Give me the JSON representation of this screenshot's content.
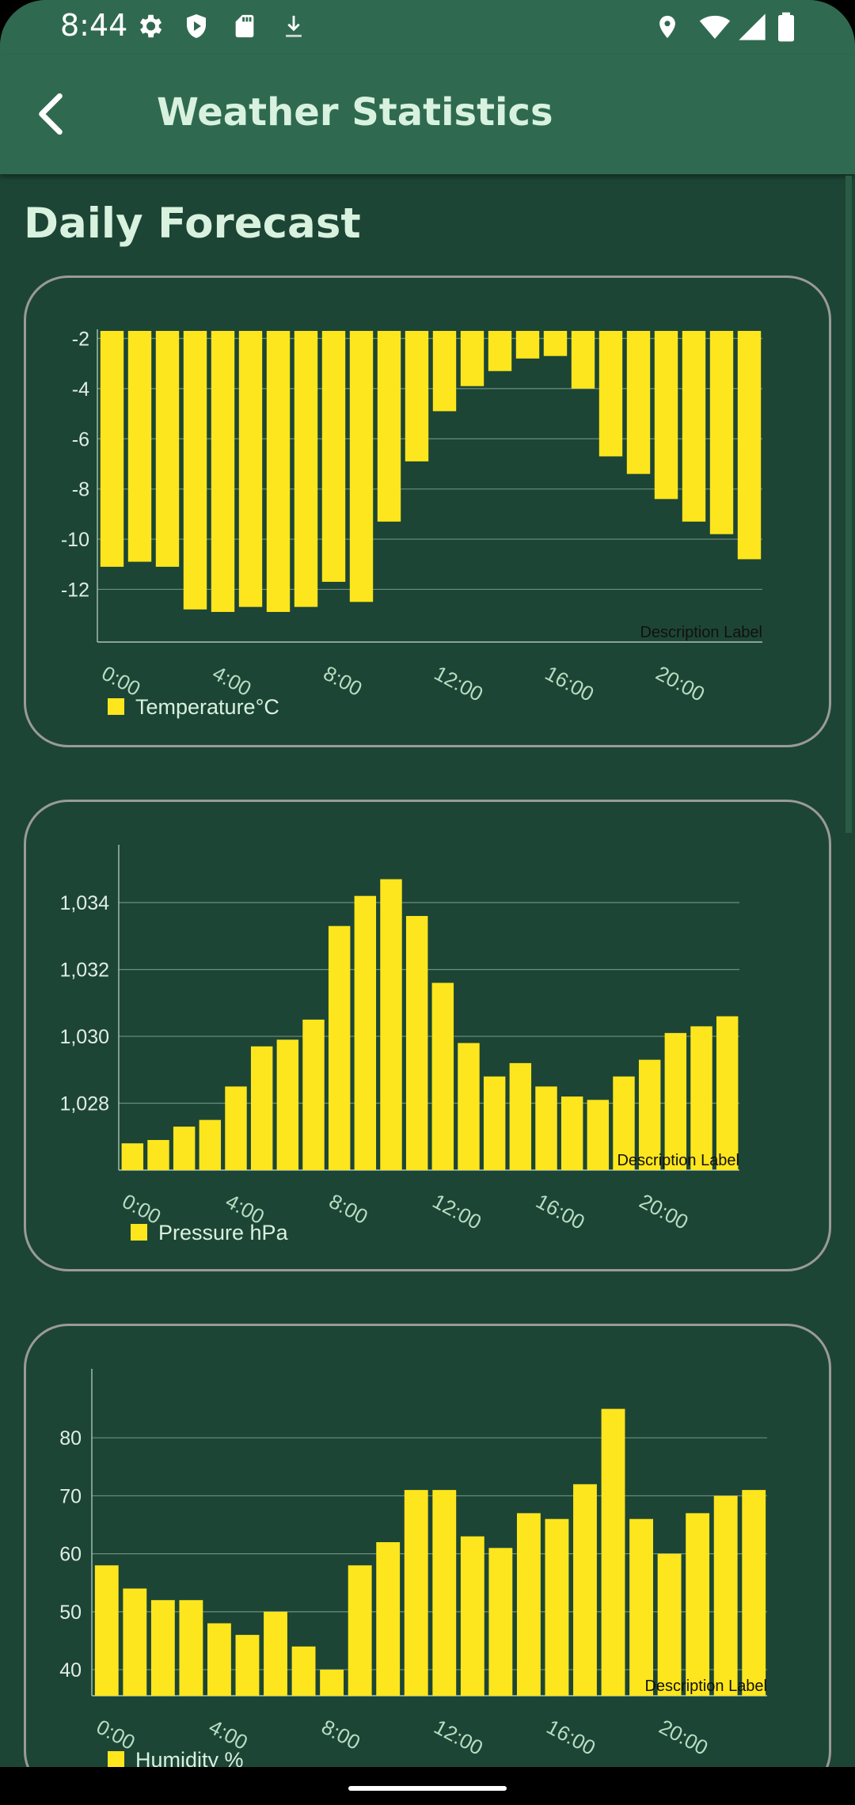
{
  "status": {
    "time": "8:44"
  },
  "appbar": {
    "title": "Weather Statistics"
  },
  "section": {
    "title": "Daily Forecast"
  },
  "colors": {
    "bar": "#fde61d",
    "text": "#d8f2df",
    "tick": "#dfeee4",
    "xtick": "#b9ddc3",
    "grid": "#6d8e7d",
    "desc": "#111111"
  },
  "icons": [
    "settings-icon",
    "shield-icon",
    "sd-card-icon",
    "download-icon",
    "location-icon",
    "wifi-icon",
    "cellular-signal-icon",
    "battery-icon",
    "back-arrow-icon"
  ],
  "chart_data": [
    {
      "type": "bar",
      "categories": [
        "0:00",
        "1:00",
        "2:00",
        "3:00",
        "4:00",
        "5:00",
        "6:00",
        "7:00",
        "8:00",
        "9:00",
        "10:00",
        "11:00",
        "12:00",
        "13:00",
        "14:00",
        "15:00",
        "16:00",
        "17:00",
        "18:00",
        "19:00",
        "20:00",
        "21:00",
        "22:00",
        "23:00"
      ],
      "x_tick_labels": [
        "0:00",
        "4:00",
        "8:00",
        "12:00",
        "16:00",
        "20:00"
      ],
      "values": [
        -11.1,
        -10.9,
        -11.1,
        -12.8,
        -12.9,
        -12.7,
        -12.9,
        -12.7,
        -11.7,
        -12.5,
        -9.3,
        -6.9,
        -4.9,
        -3.9,
        -3.3,
        -2.8,
        -2.7,
        -4.0,
        -6.7,
        -7.4,
        -8.4,
        -9.3,
        -9.8,
        -10.8
      ],
      "y_ticks": [
        -2,
        -4,
        -6,
        -8,
        -10,
        -12
      ],
      "ylim": [
        -14.1,
        -1.7
      ],
      "inverted": true,
      "grid": true,
      "legend": [
        "Temperature°C"
      ],
      "legend_position": "bottom-left",
      "description": "Description Label"
    },
    {
      "type": "bar",
      "categories": [
        "0:00",
        "1:00",
        "2:00",
        "3:00",
        "4:00",
        "5:00",
        "6:00",
        "7:00",
        "8:00",
        "9:00",
        "10:00",
        "11:00",
        "12:00",
        "13:00",
        "14:00",
        "15:00",
        "16:00",
        "17:00",
        "18:00",
        "19:00",
        "20:00",
        "21:00",
        "22:00",
        "23:00"
      ],
      "x_tick_labels": [
        "0:00",
        "4:00",
        "8:00",
        "12:00",
        "16:00",
        "20:00"
      ],
      "values": [
        1026.8,
        1026.9,
        1027.3,
        1027.5,
        1028.5,
        1029.7,
        1029.9,
        1030.5,
        1033.3,
        1034.2,
        1034.7,
        1033.6,
        1031.6,
        1029.8,
        1028.8,
        1029.2,
        1028.5,
        1028.2,
        1028.1,
        1028.8,
        1029.3,
        1030.1,
        1030.3,
        1030.6
      ],
      "y_ticks": [
        "1,028",
        "1,030",
        "1,032",
        "1,034"
      ],
      "y_tick_values": [
        1028,
        1030,
        1032,
        1034
      ],
      "ylim": [
        1026,
        1035.4
      ],
      "grid": true,
      "legend": [
        "Pressure hPa"
      ],
      "legend_position": "bottom-left",
      "description": "Description Label"
    },
    {
      "type": "bar",
      "categories": [
        "0:00",
        "1:00",
        "2:00",
        "3:00",
        "4:00",
        "5:00",
        "6:00",
        "7:00",
        "8:00",
        "9:00",
        "10:00",
        "11:00",
        "12:00",
        "13:00",
        "14:00",
        "15:00",
        "16:00",
        "17:00",
        "18:00",
        "19:00",
        "20:00",
        "21:00",
        "22:00",
        "23:00"
      ],
      "x_tick_labels": [
        "0:00",
        "4:00",
        "8:00",
        "12:00",
        "16:00",
        "20:00"
      ],
      "values": [
        58,
        54,
        52,
        52,
        48,
        46,
        50,
        44,
        40,
        58,
        62,
        71,
        71,
        63,
        61,
        67,
        66,
        72,
        85,
        66,
        60,
        67,
        70,
        71
      ],
      "y_ticks": [
        40,
        50,
        60,
        70,
        80
      ],
      "ylim": [
        35.5,
        90
      ],
      "grid": true,
      "legend": [
        "Humidity %"
      ],
      "legend_position": "bottom-left",
      "description": "Description Label"
    }
  ]
}
